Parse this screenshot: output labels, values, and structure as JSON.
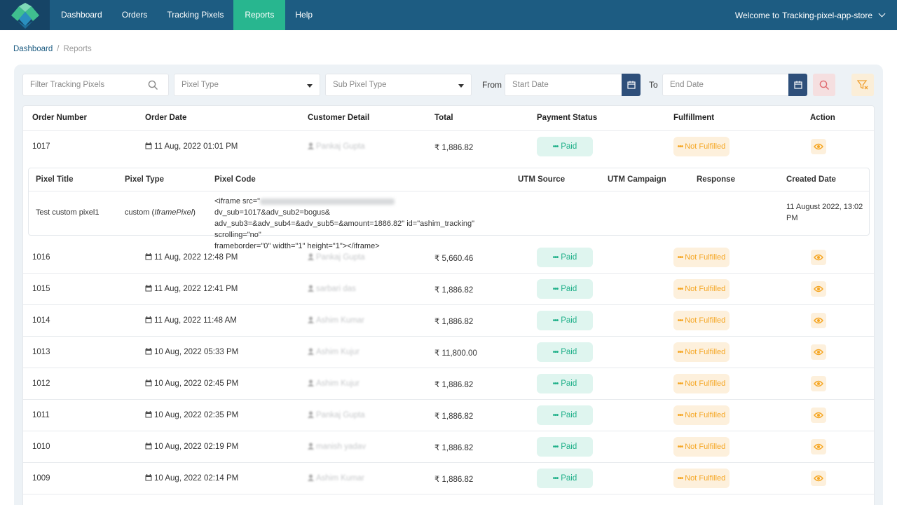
{
  "nav": {
    "items": [
      "Dashboard",
      "Orders",
      "Tracking Pixels",
      "Reports",
      "Help"
    ],
    "active": "Reports",
    "welcome_label": "Welcome to",
    "store_name": "Tracking-pixel-app-store"
  },
  "breadcrumb": {
    "home": "Dashboard",
    "sep": "/",
    "current": "Reports"
  },
  "filters": {
    "search_placeholder": "Filter Tracking Pixels",
    "pixel_type": "Pixel Type",
    "sub_pixel_type": "Sub Pixel Type",
    "from_label": "From",
    "start_placeholder": "Start Date",
    "to_label": "To",
    "end_placeholder": "End Date"
  },
  "table": {
    "headers": [
      "Order Number",
      "Order Date",
      "Customer Detail",
      "Total",
      "Payment Status",
      "Fulfillment",
      "Action"
    ],
    "paid_label": "Paid",
    "not_fulfilled_label": "Not Fulfilled",
    "rows": [
      {
        "number": "1017",
        "date": "11 Aug, 2022 01:01 PM",
        "customer": "Pankaj Gupta",
        "total": "₹ 1,886.82"
      },
      {
        "number": "1016",
        "date": "11 Aug, 2022 12:48 PM",
        "customer": "Pankaj Gupta",
        "total": "₹ 5,660.46"
      },
      {
        "number": "1015",
        "date": "11 Aug, 2022 12:41 PM",
        "customer": "sarbari das",
        "total": "₹ 1,886.82"
      },
      {
        "number": "1014",
        "date": "11 Aug, 2022 11:48 AM",
        "customer": "Ashim Kumar",
        "total": "₹ 1,886.82"
      },
      {
        "number": "1013",
        "date": "10 Aug, 2022 05:33 PM",
        "customer": "Ashim Kujur",
        "total": "₹ 11,800.00"
      },
      {
        "number": "1012",
        "date": "10 Aug, 2022 02:45 PM",
        "customer": "Ashim Kujur",
        "total": "₹ 1,886.82"
      },
      {
        "number": "1011",
        "date": "10 Aug, 2022 02:35 PM",
        "customer": "Pankaj Gupta",
        "total": "₹ 1,886.82"
      },
      {
        "number": "1010",
        "date": "10 Aug, 2022 02:19 PM",
        "customer": "manish yadav",
        "total": "₹ 1,886.82"
      },
      {
        "number": "1009",
        "date": "10 Aug, 2022 02:14 PM",
        "customer": "Ashim Kumar",
        "total": "₹ 1,886.82"
      }
    ]
  },
  "pixel_detail": {
    "headers": [
      "Pixel Title",
      "Pixel Type",
      "Pixel Code",
      "UTM Source",
      "UTM Campaign",
      "Response",
      "Created Date"
    ],
    "title": "Test custom pixel1",
    "type_prefix": "custom (",
    "type_italic": "IframePixel",
    "type_suffix": ")",
    "code_line1_start": "<iframe src=\"",
    "code_line1_end": "dv_sub=1017&adv_sub2=bogus&",
    "code_line2": "adv_sub3=&adv_sub4=&adv_sub5=&amount=1886.82\" id=\"ashim_tracking\" scrolling=\"no\"",
    "code_line3": "frameborder=\"0\" width=\"1\" height=\"1\"></iframe>",
    "created_line1": "11 August 2022, 13:02",
    "created_line2": "PM"
  },
  "colors": {
    "nav_bg": "#1d5c82",
    "nav_active": "#28b68f",
    "paid_text": "#1fb089",
    "not_fulfilled_text": "#f5a623",
    "calendar_button": "#2e4f7a"
  }
}
